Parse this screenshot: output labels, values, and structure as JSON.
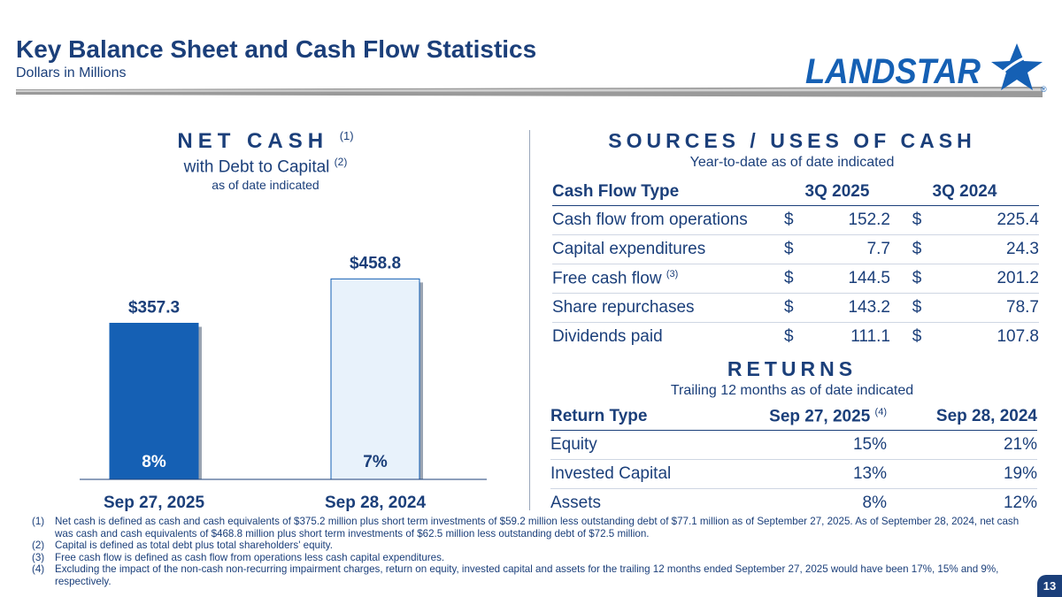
{
  "header": {
    "title": "Key Balance Sheet and Cash Flow Statistics",
    "subtitle": "Dollars in Millions",
    "logo_text": "LANDSTAR",
    "logo_mark": "®"
  },
  "net_cash": {
    "heading": "NET CASH",
    "heading_note": "(1)",
    "subheading": "with Debt to Capital",
    "subheading_note": "(2)",
    "caption": "as of date indicated"
  },
  "chart_data": {
    "type": "bar",
    "categories": [
      "Sep 27, 2025",
      "Sep 28, 2024"
    ],
    "values": [
      357.3,
      458.8
    ],
    "value_labels": [
      "$357.3",
      "$458.8"
    ],
    "inner_labels": [
      "8%",
      "7%"
    ],
    "colors": [
      "#1560b4",
      "#e8f2fb"
    ],
    "ylim": [
      0,
      500
    ]
  },
  "sources_uses": {
    "heading": "SOURCES / USES OF CASH",
    "caption": "Year-to-date as of date indicated",
    "headers": [
      "Cash Flow Type",
      "3Q 2025",
      "3Q 2024"
    ],
    "rows": [
      {
        "label": "Cash flow from operations",
        "cur1": "$",
        "v1": "152.2",
        "cur2": "$",
        "v2": "225.4"
      },
      {
        "label": "Capital expenditures",
        "cur1": "$",
        "v1": "7.7",
        "cur2": "$",
        "v2": "24.3"
      },
      {
        "label": "Free cash flow",
        "note": "(3)",
        "cur1": "$",
        "v1": "144.5",
        "cur2": "$",
        "v2": "201.2"
      },
      {
        "label": "Share repurchases",
        "cur1": "$",
        "v1": "143.2",
        "cur2": "$",
        "v2": "78.7"
      },
      {
        "label": "Dividends paid",
        "cur1": "$",
        "v1": "111.1",
        "cur2": "$",
        "v2": "107.8"
      }
    ]
  },
  "returns": {
    "heading": "RETURNS",
    "caption": "Trailing 12 months as of date indicated",
    "headers": [
      "Return Type",
      "Sep 27, 2025",
      "Sep 28, 2024"
    ],
    "header_note": "(4)",
    "rows": [
      {
        "label": "Equity",
        "v1": "15%",
        "v2": "21%"
      },
      {
        "label": "Invested Capital",
        "v1": "13%",
        "v2": "19%"
      },
      {
        "label": "Assets",
        "v1": "8%",
        "v2": "12%"
      }
    ]
  },
  "footnotes": [
    {
      "num": "(1)",
      "text": "Net cash is defined as cash and cash equivalents of $375.2 million plus short term investments of $59.2 million less outstanding debt of $77.1 million as of September 27, 2025. As of September 28, 2024, net cash was cash and cash equivalents of $468.8 million plus short term investments of $62.5 million less outstanding debt of $72.5 million."
    },
    {
      "num": "(2)",
      "text": "Capital is defined as total debt plus total shareholders' equity."
    },
    {
      "num": "(3)",
      "text": "Free cash flow is defined as cash flow from operations less cash capital expenditures."
    },
    {
      "num": "(4)",
      "text": "Excluding the impact of the non-cash non-recurring impairment charges, return on equity, invested capital and assets for the trailing 12 months ended September 27, 2025 would have been 17%, 15% and 9%, respectively."
    }
  ],
  "page_number": "13"
}
